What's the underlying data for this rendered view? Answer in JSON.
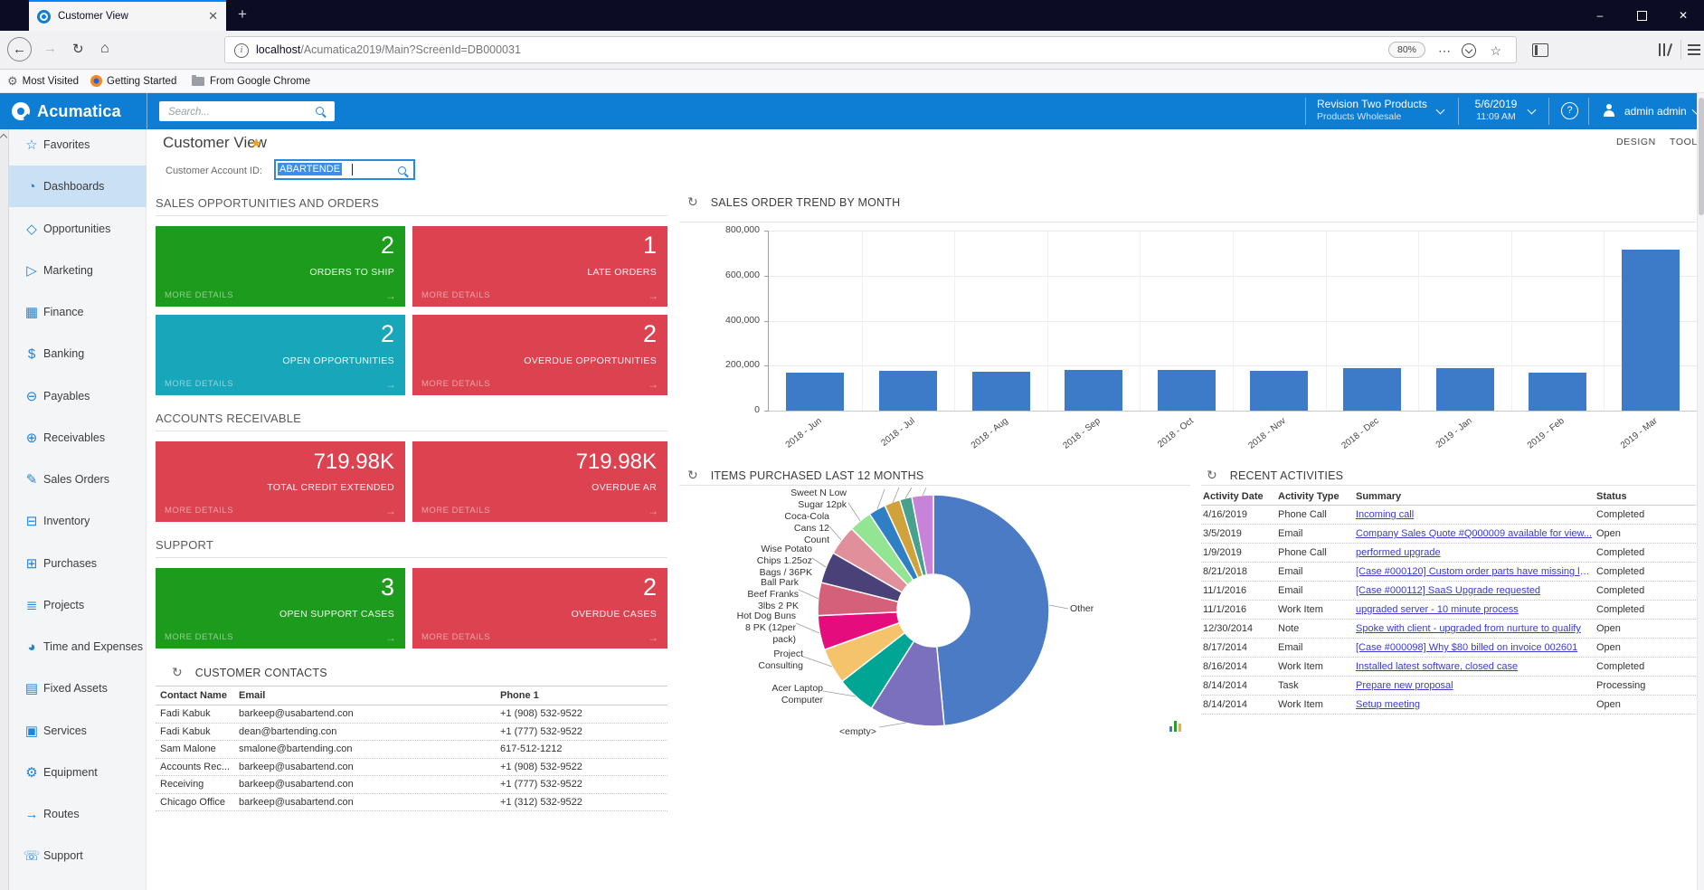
{
  "browser": {
    "tab_title": "Customer View",
    "url_host": "localhost",
    "url_path": "/Acumatica2019/Main?ScreenId=DB000031",
    "zoom": "80%",
    "bookmarks": [
      "Most Visited",
      "Getting Started",
      "From Google Chrome"
    ]
  },
  "icons": {
    "back": "←",
    "forward": "→",
    "reload": "↻",
    "home": "⌂",
    "ellipsis": "⋯",
    "star": "☆",
    "plus": "+",
    "tab_close": "✕",
    "minimize": "–",
    "close": "✕",
    "refresh": "↻",
    "gear": "⚙",
    "gold_star": "★",
    "more_arrow": "→",
    "info": "i"
  },
  "app_header": {
    "brand": "Acumatica",
    "search_placeholder": "Search...",
    "company": "Revision Two Products",
    "company_sub": "Products Wholesale",
    "date": "5/6/2019",
    "time": "11:09 AM",
    "help": "?",
    "user": "admin admin"
  },
  "sidebar": {
    "items": [
      {
        "label": "Favorites",
        "glyph": "☆",
        "icon": "star-icon"
      },
      {
        "label": "Dashboards",
        "glyph": "◔",
        "icon": "gauge-icon",
        "selected": true
      },
      {
        "label": "Opportunities",
        "glyph": "◇",
        "icon": "tag-icon"
      },
      {
        "label": "Marketing",
        "glyph": "▷",
        "icon": "megaphone-icon"
      },
      {
        "label": "Finance",
        "glyph": "▦",
        "icon": "calculator-icon"
      },
      {
        "label": "Banking",
        "glyph": "$",
        "icon": "dollar-icon"
      },
      {
        "label": "Payables",
        "glyph": "⊖",
        "icon": "minus-circle-icon"
      },
      {
        "label": "Receivables",
        "glyph": "⊕",
        "icon": "plus-circle-icon"
      },
      {
        "label": "Sales Orders",
        "glyph": "✎",
        "icon": "pencil-icon"
      },
      {
        "label": "Inventory",
        "glyph": "⊟",
        "icon": "truck-icon"
      },
      {
        "label": "Purchases",
        "glyph": "⊞",
        "icon": "cart-icon"
      },
      {
        "label": "Projects",
        "glyph": "≣",
        "icon": "bars-icon"
      },
      {
        "label": "Time and Expenses",
        "glyph": "◕",
        "icon": "stopwatch-icon"
      },
      {
        "label": "Fixed Assets",
        "glyph": "▤",
        "icon": "building-icon"
      },
      {
        "label": "Services",
        "glyph": "▣",
        "icon": "briefcase-icon"
      },
      {
        "label": "Equipment",
        "glyph": "⚙",
        "icon": "gear-icon"
      },
      {
        "label": "Routes",
        "glyph": "→",
        "icon": "route-icon"
      },
      {
        "label": "Support",
        "glyph": "☏",
        "icon": "headset-icon"
      }
    ]
  },
  "page": {
    "title": "Customer View",
    "design": "DESIGN",
    "tools": "TOOLS",
    "field_label": "Customer Account ID:",
    "field_value": "ABARTENDE"
  },
  "sections": [
    {
      "title": "SALES OPPORTUNITIES AND ORDERS",
      "tiles": [
        {
          "value": "2",
          "label": "ORDERS TO SHIP",
          "color": "#1d9b1d",
          "more": "MORE DETAILS"
        },
        {
          "value": "1",
          "label": "LATE ORDERS",
          "color": "#dc4250",
          "more": "MORE DETAILS"
        },
        {
          "value": "2",
          "label": "OPEN OPPORTUNITIES",
          "color": "#18a6ba",
          "more": "MORE DETAILS"
        },
        {
          "value": "2",
          "label": "OVERDUE OPPORTUNITIES",
          "color": "#dc4250",
          "more": "MORE DETAILS"
        }
      ]
    },
    {
      "title": "ACCOUNTS RECEIVABLE",
      "tiles": [
        {
          "value": "719.98K",
          "label": "TOTAL CREDIT EXTENDED",
          "color": "#dc4250",
          "more": "MORE DETAILS",
          "small": true
        },
        {
          "value": "719.98K",
          "label": "OVERDUE AR",
          "color": "#dc4250",
          "more": "MORE DETAILS",
          "small": true
        }
      ]
    },
    {
      "title": "SUPPORT",
      "tiles": [
        {
          "value": "3",
          "label": "OPEN SUPPORT CASES",
          "color": "#1d9b1d",
          "more": "MORE DETAILS"
        },
        {
          "value": "2",
          "label": "OVERDUE CASES",
          "color": "#dc4250",
          "more": "MORE DETAILS"
        }
      ]
    }
  ],
  "contacts": {
    "title": "CUSTOMER CONTACTS",
    "columns": [
      "Contact Name",
      "Email",
      "Phone 1"
    ],
    "rows": [
      {
        "name": "Fadi Kabuk",
        "email": "barkeep@usabartend.con",
        "phone": "+1 (908) 532-9522"
      },
      {
        "name": "Fadi Kabuk",
        "email": "dean@bartending.con",
        "phone": "+1 (777) 532-9522"
      },
      {
        "name": "Sam Malone",
        "email": "smalone@bartending.con",
        "phone": "617-512-1212"
      },
      {
        "name": "Accounts Rec...",
        "email": "barkeep@usabartend.con",
        "phone": "+1 (908) 532-9522"
      },
      {
        "name": "Receiving",
        "email": "barkeep@usabartend.con",
        "phone": "+1 (777) 532-9522"
      },
      {
        "name": "Chicago Office",
        "email": "barkeep@usabartend.con",
        "phone": "+1 (312) 532-9522"
      }
    ]
  },
  "chart_data": [
    {
      "type": "bar",
      "title": "SALES ORDER TREND BY MONTH",
      "categories": [
        "2018 - Jun",
        "2018 - Jul",
        "2018 - Aug",
        "2018 - Sep",
        "2018 - Oct",
        "2018 - Nov",
        "2018 - Dec",
        "2019 - Jan",
        "2019 - Feb",
        "2019 - Mar"
      ],
      "values": [
        170000,
        177000,
        173000,
        181000,
        182000,
        177000,
        187000,
        190000,
        169000,
        714000
      ],
      "ylim": [
        0,
        800000
      ],
      "ytick_labels": [
        "800,000",
        "600,000",
        "400,000",
        "200,000",
        "0"
      ],
      "bar_color": "#3d7bc8",
      "grid": true,
      "xlabel": "",
      "ylabel": ""
    },
    {
      "type": "pie",
      "title": "ITEMS PURCHASED LAST 12 MONTHS",
      "donut": true,
      "slices": [
        {
          "label": "Other",
          "pct": 48.5,
          "color": "#4a7bc4"
        },
        {
          "label": "<empty>",
          "pct": 10.5,
          "color": "#7a70bd"
        },
        {
          "label": "Acer Laptop Computer",
          "pct": 5.5,
          "color": "#00a693"
        },
        {
          "label": "Project Consulting",
          "pct": 5.0,
          "color": "#f6c36d"
        },
        {
          "label": "Hot Dog Buns 8 PK (12per pack)",
          "pct": 4.8,
          "color": "#e50c7e"
        },
        {
          "label": "Ball Park Beef Franks 3lbs 2 PK",
          "pct": 4.6,
          "color": "#d5607a"
        },
        {
          "label": "Wise Potato Chips 1.25oz Bags / 36PK",
          "pct": 4.4,
          "color": "#494177"
        },
        {
          "label": "Coca-Cola Cans 12 Count",
          "pct": 4.2,
          "color": "#e18f9b"
        },
        {
          "label": "Sweet N Low Sugar 12pk",
          "pct": 3.2,
          "color": "#93e493"
        },
        {
          "label": "",
          "pct": 2.4,
          "color": "#2e7fc3"
        },
        {
          "label": "",
          "pct": 2.2,
          "color": "#cfa23c"
        },
        {
          "label": "",
          "pct": 1.7,
          "color": "#47a18e"
        },
        {
          "label": "",
          "pct": 3.0,
          "color": "#c783da"
        }
      ],
      "callout_labels": [
        {
          "text": "Sweet N Low\nSugar 12pk"
        },
        {
          "text": "Coca-Cola\nCans 12\nCount"
        },
        {
          "text": "Wise Potato\nChips 1.25oz\nBags / 36PK"
        },
        {
          "text": "Ball Park\nBeef Franks\n3lbs 2 PK"
        },
        {
          "text": "Hot Dog Buns\n8 PK (12per\npack)"
        },
        {
          "text": "Project\nConsulting"
        },
        {
          "text": "Acer Laptop\nComputer"
        },
        {
          "text": "<empty>"
        },
        {
          "text": "Other"
        }
      ]
    }
  ],
  "activities": {
    "title": "RECENT ACTIVITIES",
    "columns": [
      "Activity Date",
      "Activity Type",
      "Summary",
      "Status"
    ],
    "rows": [
      {
        "date": "4/16/2019",
        "type": "Phone Call",
        "summary": "Incoming call",
        "status": "Completed"
      },
      {
        "date": "3/5/2019",
        "type": "Email",
        "summary": "Company Sales Quote #Q000009 available for view...",
        "status": "Open"
      },
      {
        "date": "1/9/2019",
        "type": "Phone Call",
        "summary": "performed upgrade",
        "status": "Completed"
      },
      {
        "date": "8/21/2018",
        "type": "Email",
        "summary": "[Case #000120] Custom order parts have missing lef...",
        "status": "Completed"
      },
      {
        "date": "11/1/2016",
        "type": "Email",
        "summary": "[Case #000112] SaaS Upgrade requested",
        "status": "Completed"
      },
      {
        "date": "11/1/2016",
        "type": "Work Item",
        "summary": "upgraded server - 10 minute process",
        "status": "Completed"
      },
      {
        "date": "12/30/2014",
        "type": "Note",
        "summary": "Spoke with client - upgraded from nurture to qualify",
        "status": "Open"
      },
      {
        "date": "8/17/2014",
        "type": "Email",
        "summary": "[Case #000098] Why $80 billed on invoice 002601",
        "status": "Open"
      },
      {
        "date": "8/16/2014",
        "type": "Work Item",
        "summary": "Installed latest software, closed case",
        "status": "Completed"
      },
      {
        "date": "8/14/2014",
        "type": "Task",
        "summary": "Prepare new proposal",
        "status": "Processing"
      },
      {
        "date": "8/14/2014",
        "type": "Work Item",
        "summary": "Setup meeting",
        "status": "Open"
      }
    ]
  }
}
